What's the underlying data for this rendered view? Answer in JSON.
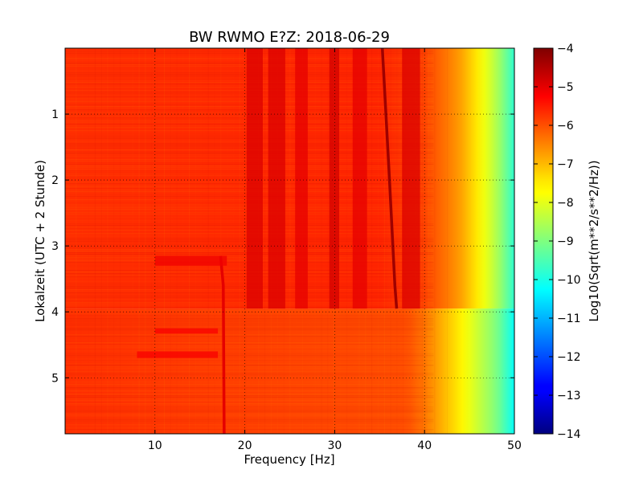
{
  "chart_data": {
    "type": "heatmap",
    "title": "BW RWMO E?Z: 2018-06-29",
    "xlabel": "Frequency [Hz]",
    "ylabel": "Lokalzeit (UTC + 2 Stunde)",
    "colorbar_label": "Log10(Sqrt(m**2/s**2/Hz))",
    "colormap": "jet",
    "grid": true,
    "xlim": [
      0,
      50
    ],
    "ylim": [
      5.85,
      0
    ],
    "x_ticks": [
      10,
      20,
      30,
      40,
      50
    ],
    "x_tick_labels": [
      "10",
      "20",
      "30",
      "40",
      "50"
    ],
    "y_ticks": [
      1,
      2,
      3,
      4,
      5
    ],
    "y_tick_labels": [
      "1",
      "2",
      "3",
      "4",
      "5"
    ],
    "clim": [
      -14,
      -4
    ],
    "colorbar_ticks": [
      -4,
      -5,
      -6,
      -7,
      -8,
      -9,
      -10,
      -11,
      -12,
      -13,
      -14
    ],
    "colorbar_tick_labels": [
      "−4",
      "−5",
      "−6",
      "−7",
      "−8",
      "−9",
      "−10",
      "−11",
      "−12",
      "−13",
      "−14"
    ],
    "regime_change_time": 3.95,
    "baseline_level": -5.7,
    "rolloff": [
      {
        "time_range": [
          0,
          3.95
        ],
        "profile": [
          [
            0,
            -5.7
          ],
          [
            35,
            -5.6
          ],
          [
            40,
            -5.9
          ],
          [
            42,
            -6.3
          ],
          [
            44,
            -6.8
          ],
          [
            46,
            -7.6
          ],
          [
            48,
            -8.5
          ],
          [
            50,
            -9.8
          ]
        ]
      },
      {
        "time_range": [
          3.95,
          5.85
        ],
        "profile": [
          [
            0,
            -5.7
          ],
          [
            38,
            -6.0
          ],
          [
            40,
            -6.4
          ],
          [
            42,
            -7.0
          ],
          [
            44,
            -7.6
          ],
          [
            46,
            -8.3
          ],
          [
            48,
            -9.0
          ],
          [
            50,
            -10.2
          ]
        ]
      }
    ],
    "features": [
      {
        "name": "drifting-tone",
        "type": "line",
        "points": [
          [
            35.3,
            0
          ],
          [
            36.1,
            2.0
          ],
          [
            36.7,
            3.6
          ],
          [
            36.9,
            3.95
          ]
        ],
        "level": -4.3
      },
      {
        "name": "tone-17.6Hz",
        "type": "line",
        "points": [
          [
            17.3,
            3.15
          ],
          [
            17.6,
            3.6
          ],
          [
            17.7,
            5.85
          ]
        ],
        "level": -5.0
      },
      {
        "name": "band-20-22",
        "type": "band",
        "f_range": [
          20.2,
          22.0
        ],
        "t_range": [
          0,
          3.95
        ],
        "level": -4.9
      },
      {
        "name": "band-22.5-24.5",
        "type": "band",
        "f_range": [
          22.6,
          24.5
        ],
        "t_range": [
          0,
          3.95
        ],
        "level": -4.9
      },
      {
        "name": "band-25.5-27",
        "type": "band",
        "f_range": [
          25.6,
          27.0
        ],
        "t_range": [
          0,
          3.95
        ],
        "level": -5.0
      },
      {
        "name": "band-29.5-30.5",
        "type": "band",
        "f_range": [
          29.4,
          30.5
        ],
        "t_range": [
          0,
          3.95
        ],
        "level": -4.8
      },
      {
        "name": "band-32-33.5",
        "type": "band",
        "f_range": [
          32.0,
          33.6
        ],
        "t_range": [
          0,
          3.95
        ],
        "level": -5.0
      },
      {
        "name": "band-37.5-39.5",
        "type": "band",
        "f_range": [
          37.5,
          39.5
        ],
        "t_range": [
          0,
          3.95
        ],
        "level": -4.9
      },
      {
        "name": "event-3.2h",
        "type": "band",
        "f_range": [
          10,
          18
        ],
        "t_range": [
          3.15,
          3.3
        ],
        "level": -5.1
      },
      {
        "name": "event-4.3h",
        "type": "band",
        "f_range": [
          10,
          17
        ],
        "t_range": [
          4.25,
          4.33
        ],
        "level": -5.2
      },
      {
        "name": "event-4.65h",
        "type": "band",
        "f_range": [
          8,
          17
        ],
        "t_range": [
          4.6,
          4.7
        ],
        "level": -5.2
      }
    ]
  }
}
